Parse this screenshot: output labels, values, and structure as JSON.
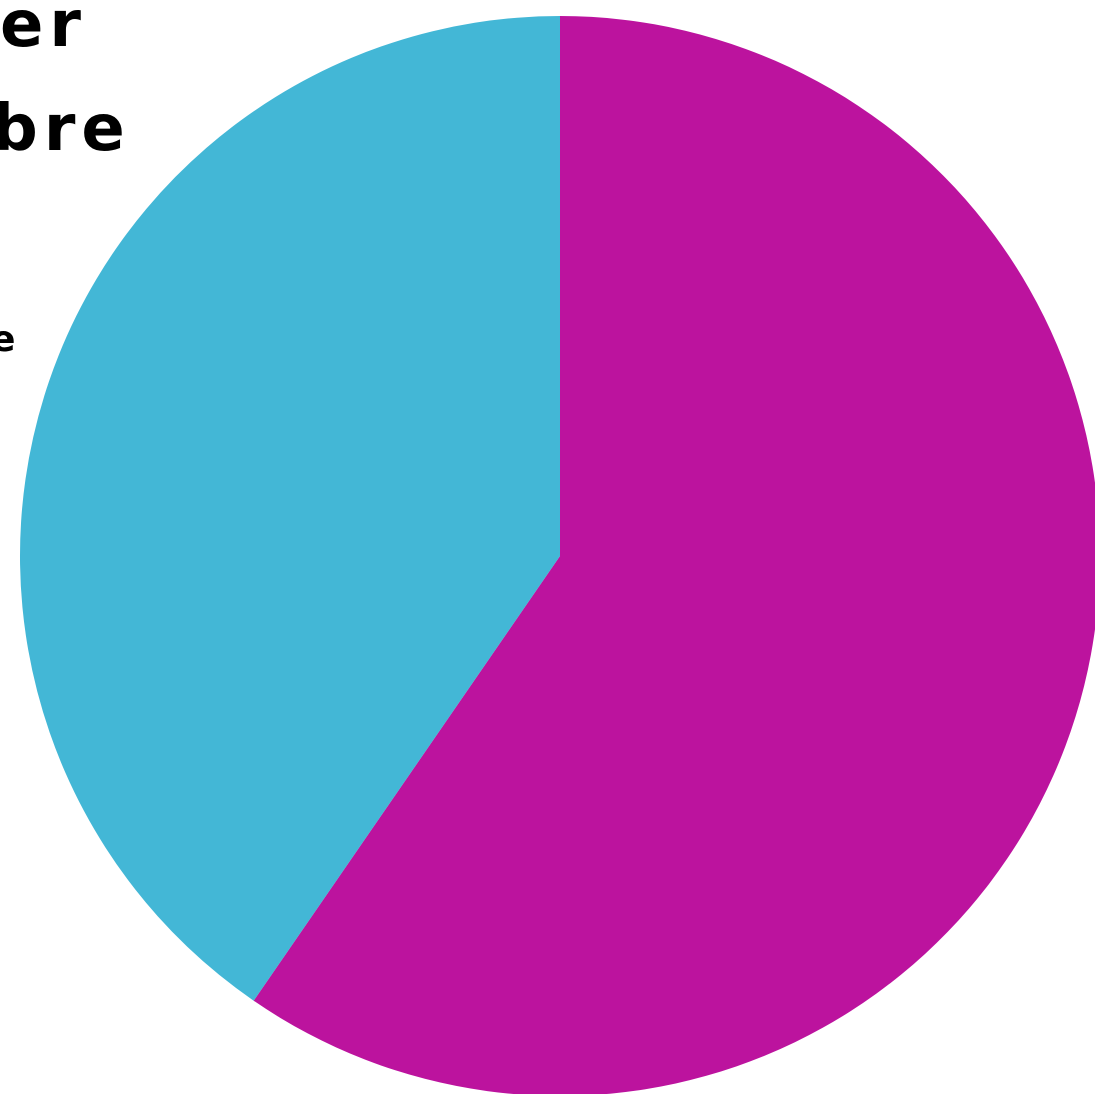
{
  "chart_data": {
    "type": "pie",
    "title_fragments": [
      "er",
      "bre",
      "e"
    ],
    "slices": [
      {
        "label": "",
        "value": 59.6,
        "color": "#BC139E"
      },
      {
        "label": "",
        "value": 40.4,
        "color": "#43B7D6"
      }
    ],
    "start_angle_deg": 0,
    "direction": "clockwise",
    "legend": "none"
  }
}
